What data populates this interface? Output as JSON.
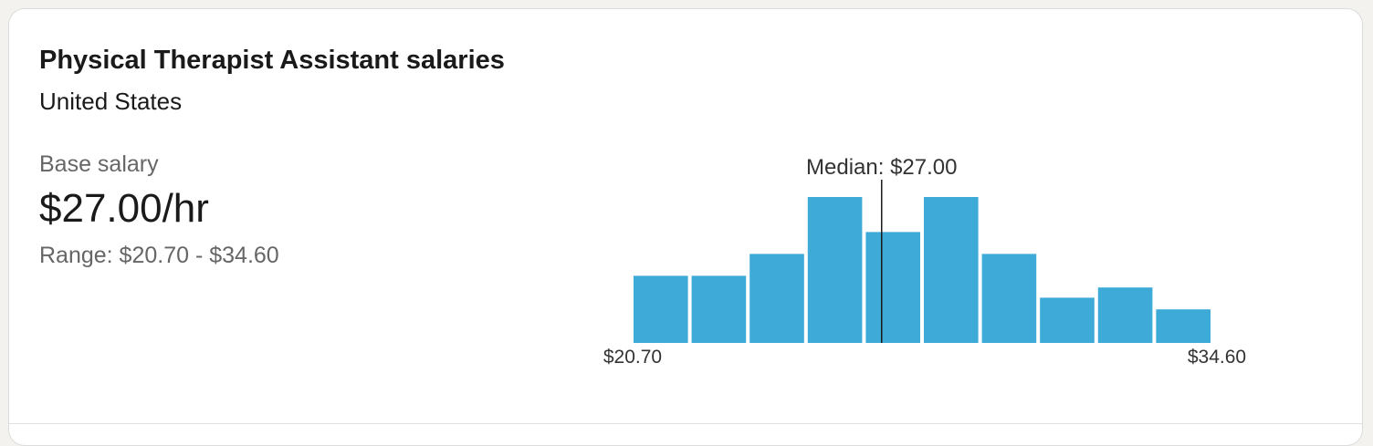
{
  "card": {
    "title": "Physical Therapist Assistant salaries",
    "location": "United States"
  },
  "salary": {
    "base_label": "Base salary",
    "base_value": "$27.00/hr",
    "range_text": "Range: $20.70 - $34.60"
  },
  "colors": {
    "bar": "#3daad8",
    "median_line": "#1a1a1a"
  },
  "chart_data": {
    "type": "bar",
    "title": "",
    "xlabel": "",
    "ylabel": "",
    "x_min_label": "$20.70",
    "x_max_label": "$34.60",
    "median_label": "Median: $27.00",
    "x_range": [
      20.7,
      34.6
    ],
    "median": 27.0,
    "bin_count": 10,
    "relative_heights": [
      0.46,
      0.46,
      0.61,
      1.0,
      0.76,
      1.0,
      0.61,
      0.31,
      0.38,
      0.23
    ],
    "grid": false,
    "legend": "none"
  }
}
